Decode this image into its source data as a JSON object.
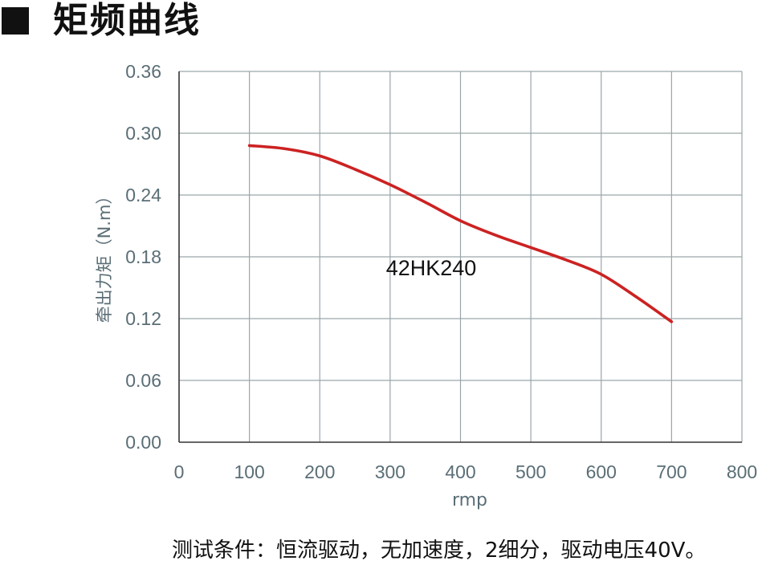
{
  "heading": {
    "title": "矩频曲线",
    "marker_icon": "black-square-icon"
  },
  "footer": {
    "conditions": "测试条件：恒流驱动，无加速度，2细分，驱动电压40V。"
  },
  "chart_data": {
    "type": "line",
    "title": "矩频曲线",
    "xlabel": "rmp",
    "ylabel": "牵出力矩（N.m）",
    "xlim": [
      0,
      800
    ],
    "ylim": [
      0,
      0.36
    ],
    "x_ticks": [
      "0",
      "100",
      "200",
      "300",
      "400",
      "500",
      "600",
      "700",
      "800"
    ],
    "y_ticks": [
      "0.00",
      "0.06",
      "0.12",
      "0.18",
      "0.24",
      "0.30",
      "0.36"
    ],
    "grid": true,
    "series": [
      {
        "name": "42HK240",
        "color": "#cc2222",
        "x": [
          100,
          150,
          200,
          250,
          300,
          350,
          400,
          450,
          500,
          550,
          600,
          650,
          700
        ],
        "y": [
          0.288,
          0.285,
          0.278,
          0.265,
          0.25,
          0.233,
          0.215,
          0.201,
          0.189,
          0.177,
          0.163,
          0.141,
          0.117
        ]
      }
    ]
  }
}
